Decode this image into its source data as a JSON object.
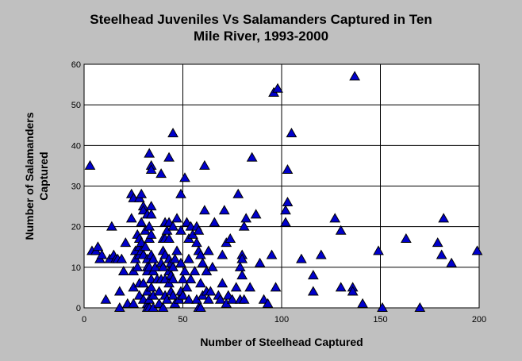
{
  "chart_data": {
    "type": "scatter",
    "title_lines": [
      "Steelhead Juveniles Vs Salamanders Captured in Ten",
      "Mile River, 1993-2000"
    ],
    "xlabel": "Number of Steelhead Captured",
    "ylabel_lines": [
      "Number of Salamanders",
      "Captured"
    ],
    "xlim": [
      0,
      200
    ],
    "ylim": [
      0,
      60
    ],
    "xticks": [
      0,
      50,
      100,
      150,
      200
    ],
    "yticks": [
      0,
      10,
      20,
      30,
      40,
      50,
      60
    ],
    "grid": true,
    "marker": "triangle",
    "marker_color": "#0000cc",
    "plot_background": "#ffffff",
    "points": [
      [
        3,
        35
      ],
      [
        4,
        14
      ],
      [
        6,
        14
      ],
      [
        7,
        15
      ],
      [
        8,
        12
      ],
      [
        9,
        13
      ],
      [
        11,
        2
      ],
      [
        13,
        12
      ],
      [
        14,
        20
      ],
      [
        15,
        13
      ],
      [
        16,
        12
      ],
      [
        17,
        12
      ],
      [
        18,
        4
      ],
      [
        18,
        0
      ],
      [
        19,
        12
      ],
      [
        20,
        9
      ],
      [
        21,
        16
      ],
      [
        22,
        1
      ],
      [
        24,
        28
      ],
      [
        24,
        22
      ],
      [
        25,
        27
      ],
      [
        25,
        9
      ],
      [
        25,
        5
      ],
      [
        25,
        1
      ],
      [
        26,
        14
      ],
      [
        26,
        12
      ],
      [
        27,
        18
      ],
      [
        27,
        10
      ],
      [
        28,
        27
      ],
      [
        28,
        17
      ],
      [
        28,
        15
      ],
      [
        28,
        13
      ],
      [
        28,
        6
      ],
      [
        28,
        3
      ],
      [
        29,
        28
      ],
      [
        29,
        21
      ],
      [
        29,
        16
      ],
      [
        29,
        14
      ],
      [
        30,
        25
      ],
      [
        30,
        24
      ],
      [
        30,
        13
      ],
      [
        30,
        6
      ],
      [
        30,
        2
      ],
      [
        31,
        19
      ],
      [
        31,
        15
      ],
      [
        32,
        23
      ],
      [
        32,
        12
      ],
      [
        32,
        10
      ],
      [
        32,
        9
      ],
      [
        32,
        4
      ],
      [
        32,
        1
      ],
      [
        32,
        0
      ],
      [
        33,
        38
      ],
      [
        33,
        20
      ],
      [
        33,
        17
      ],
      [
        33,
        10
      ],
      [
        33,
        2
      ],
      [
        33,
        0
      ],
      [
        34,
        35
      ],
      [
        34,
        34
      ],
      [
        34,
        25
      ],
      [
        34,
        23
      ],
      [
        34,
        18
      ],
      [
        34,
        13
      ],
      [
        34,
        7
      ],
      [
        34,
        5
      ],
      [
        35,
        12
      ],
      [
        35,
        9
      ],
      [
        35,
        3
      ],
      [
        35,
        0
      ],
      [
        36,
        10
      ],
      [
        37,
        7
      ],
      [
        38,
        4
      ],
      [
        38,
        1
      ],
      [
        39,
        33
      ],
      [
        39,
        11
      ],
      [
        39,
        7
      ],
      [
        40,
        17
      ],
      [
        40,
        14
      ],
      [
        40,
        10
      ],
      [
        40,
        0
      ],
      [
        41,
        21
      ],
      [
        41,
        17
      ],
      [
        41,
        13
      ],
      [
        41,
        7
      ],
      [
        41,
        3
      ],
      [
        42,
        19
      ],
      [
        42,
        2
      ],
      [
        43,
        37
      ],
      [
        43,
        21
      ],
      [
        43,
        17
      ],
      [
        43,
        12
      ],
      [
        43,
        9
      ],
      [
        43,
        6
      ],
      [
        44,
        11
      ],
      [
        44,
        8
      ],
      [
        44,
        4
      ],
      [
        45,
        43
      ],
      [
        45,
        20
      ],
      [
        45,
        10
      ],
      [
        45,
        7
      ],
      [
        45,
        3
      ],
      [
        46,
        12
      ],
      [
        46,
        1
      ],
      [
        47,
        22
      ],
      [
        47,
        14
      ],
      [
        48,
        2
      ],
      [
        49,
        28
      ],
      [
        49,
        19
      ],
      [
        49,
        11
      ],
      [
        49,
        4
      ],
      [
        50,
        7
      ],
      [
        50,
        3
      ],
      [
        51,
        32
      ],
      [
        51,
        9
      ],
      [
        52,
        21
      ],
      [
        52,
        5
      ],
      [
        53,
        17
      ],
      [
        53,
        12
      ],
      [
        53,
        2
      ],
      [
        54,
        20
      ],
      [
        54,
        7
      ],
      [
        55,
        18
      ],
      [
        56,
        9
      ],
      [
        57,
        20
      ],
      [
        57,
        16
      ],
      [
        57,
        2
      ],
      [
        58,
        19
      ],
      [
        58,
        14
      ],
      [
        58,
        0
      ],
      [
        59,
        13
      ],
      [
        59,
        6
      ],
      [
        59,
        0
      ],
      [
        60,
        11
      ],
      [
        60,
        3
      ],
      [
        61,
        35
      ],
      [
        61,
        24
      ],
      [
        62,
        9
      ],
      [
        62,
        4
      ],
      [
        63,
        14
      ],
      [
        63,
        2
      ],
      [
        64,
        4
      ],
      [
        65,
        10
      ],
      [
        66,
        21
      ],
      [
        68,
        3
      ],
      [
        69,
        2
      ],
      [
        70,
        13
      ],
      [
        70,
        6
      ],
      [
        71,
        24
      ],
      [
        72,
        16
      ],
      [
        72,
        1
      ],
      [
        73,
        3
      ],
      [
        74,
        17
      ],
      [
        75,
        2
      ],
      [
        77,
        5
      ],
      [
        78,
        28
      ],
      [
        79,
        10
      ],
      [
        79,
        2
      ],
      [
        80,
        13
      ],
      [
        80,
        12
      ],
      [
        80,
        8
      ],
      [
        81,
        20
      ],
      [
        81,
        2
      ],
      [
        82,
        22
      ],
      [
        84,
        5
      ],
      [
        85,
        37
      ],
      [
        87,
        23
      ],
      [
        89,
        11
      ],
      [
        91,
        2
      ],
      [
        93,
        1
      ],
      [
        95,
        13
      ],
      [
        96,
        53
      ],
      [
        97,
        5
      ],
      [
        98,
        54
      ],
      [
        102,
        24
      ],
      [
        102,
        21
      ],
      [
        103,
        26
      ],
      [
        103,
        34
      ],
      [
        105,
        43
      ],
      [
        110,
        12
      ],
      [
        116,
        4
      ],
      [
        116,
        8
      ],
      [
        120,
        13
      ],
      [
        127,
        22
      ],
      [
        130,
        19
      ],
      [
        130,
        5
      ],
      [
        136,
        5
      ],
      [
        136,
        4
      ],
      [
        137,
        57
      ],
      [
        141,
        1
      ],
      [
        149,
        14
      ],
      [
        151,
        0
      ],
      [
        163,
        17
      ],
      [
        170,
        0
      ],
      [
        179,
        16
      ],
      [
        181,
        13
      ],
      [
        182,
        22
      ],
      [
        186,
        11
      ],
      [
        199,
        14
      ]
    ]
  }
}
